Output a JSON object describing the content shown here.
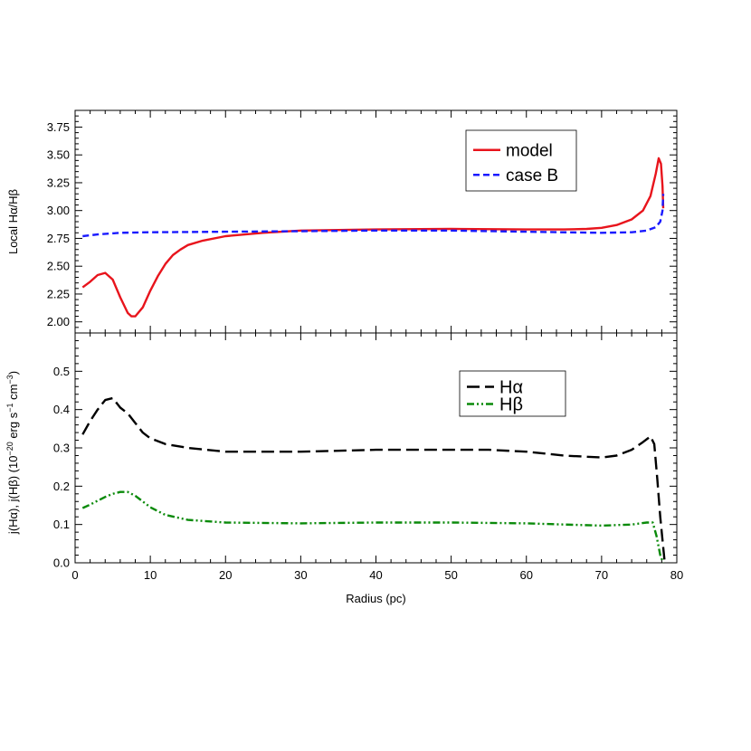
{
  "chart_data": [
    {
      "type": "line",
      "ylabel": "Local Hα/Hβ",
      "xlim": [
        0,
        80
      ],
      "ylim": [
        1.9,
        3.9
      ],
      "yticks": [
        "2.00",
        "2.25",
        "2.50",
        "2.75",
        "3.00",
        "3.25",
        "3.50",
        "3.75"
      ],
      "legend_position": "top-right",
      "series": [
        {
          "name": "model",
          "color": "#e8141c",
          "style": "solid",
          "points": [
            [
              1.0,
              2.31
            ],
            [
              2.0,
              2.36
            ],
            [
              3.0,
              2.42
            ],
            [
              4.0,
              2.44
            ],
            [
              5.0,
              2.38
            ],
            [
              6.0,
              2.22
            ],
            [
              7.0,
              2.08
            ],
            [
              7.5,
              2.05
            ],
            [
              8.0,
              2.05
            ],
            [
              9.0,
              2.13
            ],
            [
              10.0,
              2.28
            ],
            [
              11.0,
              2.41
            ],
            [
              12.0,
              2.52
            ],
            [
              13.0,
              2.6
            ],
            [
              14.0,
              2.65
            ],
            [
              15.0,
              2.69
            ],
            [
              17.0,
              2.73
            ],
            [
              20.0,
              2.77
            ],
            [
              25.0,
              2.8
            ],
            [
              30.0,
              2.82
            ],
            [
              40.0,
              2.83
            ],
            [
              50.0,
              2.835
            ],
            [
              60.0,
              2.83
            ],
            [
              65.0,
              2.83
            ],
            [
              68.0,
              2.835
            ],
            [
              70.0,
              2.845
            ],
            [
              72.0,
              2.87
            ],
            [
              74.0,
              2.92
            ],
            [
              75.5,
              3.0
            ],
            [
              76.5,
              3.13
            ],
            [
              77.2,
              3.33
            ],
            [
              77.6,
              3.47
            ],
            [
              77.9,
              3.42
            ],
            [
              78.1,
              3.22
            ],
            [
              78.2,
              3.02
            ]
          ]
        },
        {
          "name": "case B",
          "color": "#1a1aff",
          "style": "dashed",
          "points": [
            [
              1.0,
              2.77
            ],
            [
              3.0,
              2.785
            ],
            [
              6.0,
              2.8
            ],
            [
              10.0,
              2.805
            ],
            [
              20.0,
              2.81
            ],
            [
              30.0,
              2.815
            ],
            [
              40.0,
              2.82
            ],
            [
              50.0,
              2.82
            ],
            [
              60.0,
              2.81
            ],
            [
              70.0,
              2.8
            ],
            [
              74.0,
              2.805
            ],
            [
              76.0,
              2.82
            ],
            [
              77.2,
              2.85
            ],
            [
              77.8,
              2.9
            ],
            [
              78.1,
              3.0
            ],
            [
              78.2,
              3.15
            ]
          ]
        }
      ]
    },
    {
      "type": "line",
      "xlabel": "Radius (pc)",
      "ylabel_parts": [
        "j(Hα), j(Hβ) (10",
        "−20",
        " erg s",
        "−1",
        " cm",
        "−3",
        ")"
      ],
      "xlim": [
        0,
        80
      ],
      "ylim": [
        0,
        0.6
      ],
      "xticks": [
        "0",
        "10",
        "20",
        "30",
        "40",
        "50",
        "60",
        "70",
        "80"
      ],
      "yticks": [
        "0.0",
        "0.1",
        "0.2",
        "0.3",
        "0.4",
        "0.5"
      ],
      "legend_position": "top-right",
      "series": [
        {
          "name": "Hα",
          "color": "#000000",
          "style": "long-dash",
          "points": [
            [
              1.0,
              0.335
            ],
            [
              2.0,
              0.37
            ],
            [
              3.0,
              0.4
            ],
            [
              4.0,
              0.425
            ],
            [
              5.0,
              0.43
            ],
            [
              6.0,
              0.405
            ],
            [
              7.0,
              0.39
            ],
            [
              8.0,
              0.365
            ],
            [
              9.0,
              0.34
            ],
            [
              10.0,
              0.325
            ],
            [
              12.0,
              0.31
            ],
            [
              15.0,
              0.3
            ],
            [
              20.0,
              0.29
            ],
            [
              25.0,
              0.29
            ],
            [
              30.0,
              0.29
            ],
            [
              40.0,
              0.295
            ],
            [
              50.0,
              0.295
            ],
            [
              55.0,
              0.295
            ],
            [
              60.0,
              0.29
            ],
            [
              65.0,
              0.28
            ],
            [
              70.0,
              0.275
            ],
            [
              72.0,
              0.28
            ],
            [
              74.0,
              0.295
            ],
            [
              75.5,
              0.315
            ],
            [
              76.5,
              0.33
            ],
            [
              77.0,
              0.31
            ],
            [
              77.4,
              0.22
            ],
            [
              77.8,
              0.12
            ],
            [
              78.2,
              0.04
            ],
            [
              78.4,
              0.0
            ]
          ]
        },
        {
          "name": "Hβ",
          "color": "#0a8a0a",
          "style": "dash-dot-dot",
          "points": [
            [
              1.0,
              0.143
            ],
            [
              2.0,
              0.152
            ],
            [
              3.0,
              0.162
            ],
            [
              4.0,
              0.172
            ],
            [
              5.0,
              0.18
            ],
            [
              6.0,
              0.185
            ],
            [
              7.0,
              0.185
            ],
            [
              8.0,
              0.175
            ],
            [
              10.0,
              0.145
            ],
            [
              12.0,
              0.125
            ],
            [
              15.0,
              0.112
            ],
            [
              20.0,
              0.105
            ],
            [
              30.0,
              0.103
            ],
            [
              40.0,
              0.105
            ],
            [
              50.0,
              0.105
            ],
            [
              60.0,
              0.103
            ],
            [
              65.0,
              0.1
            ],
            [
              70.0,
              0.097
            ],
            [
              74.0,
              0.1
            ],
            [
              76.0,
              0.105
            ],
            [
              76.8,
              0.105
            ],
            [
              77.3,
              0.07
            ],
            [
              77.8,
              0.02
            ],
            [
              78.2,
              0.0
            ]
          ]
        }
      ]
    }
  ]
}
